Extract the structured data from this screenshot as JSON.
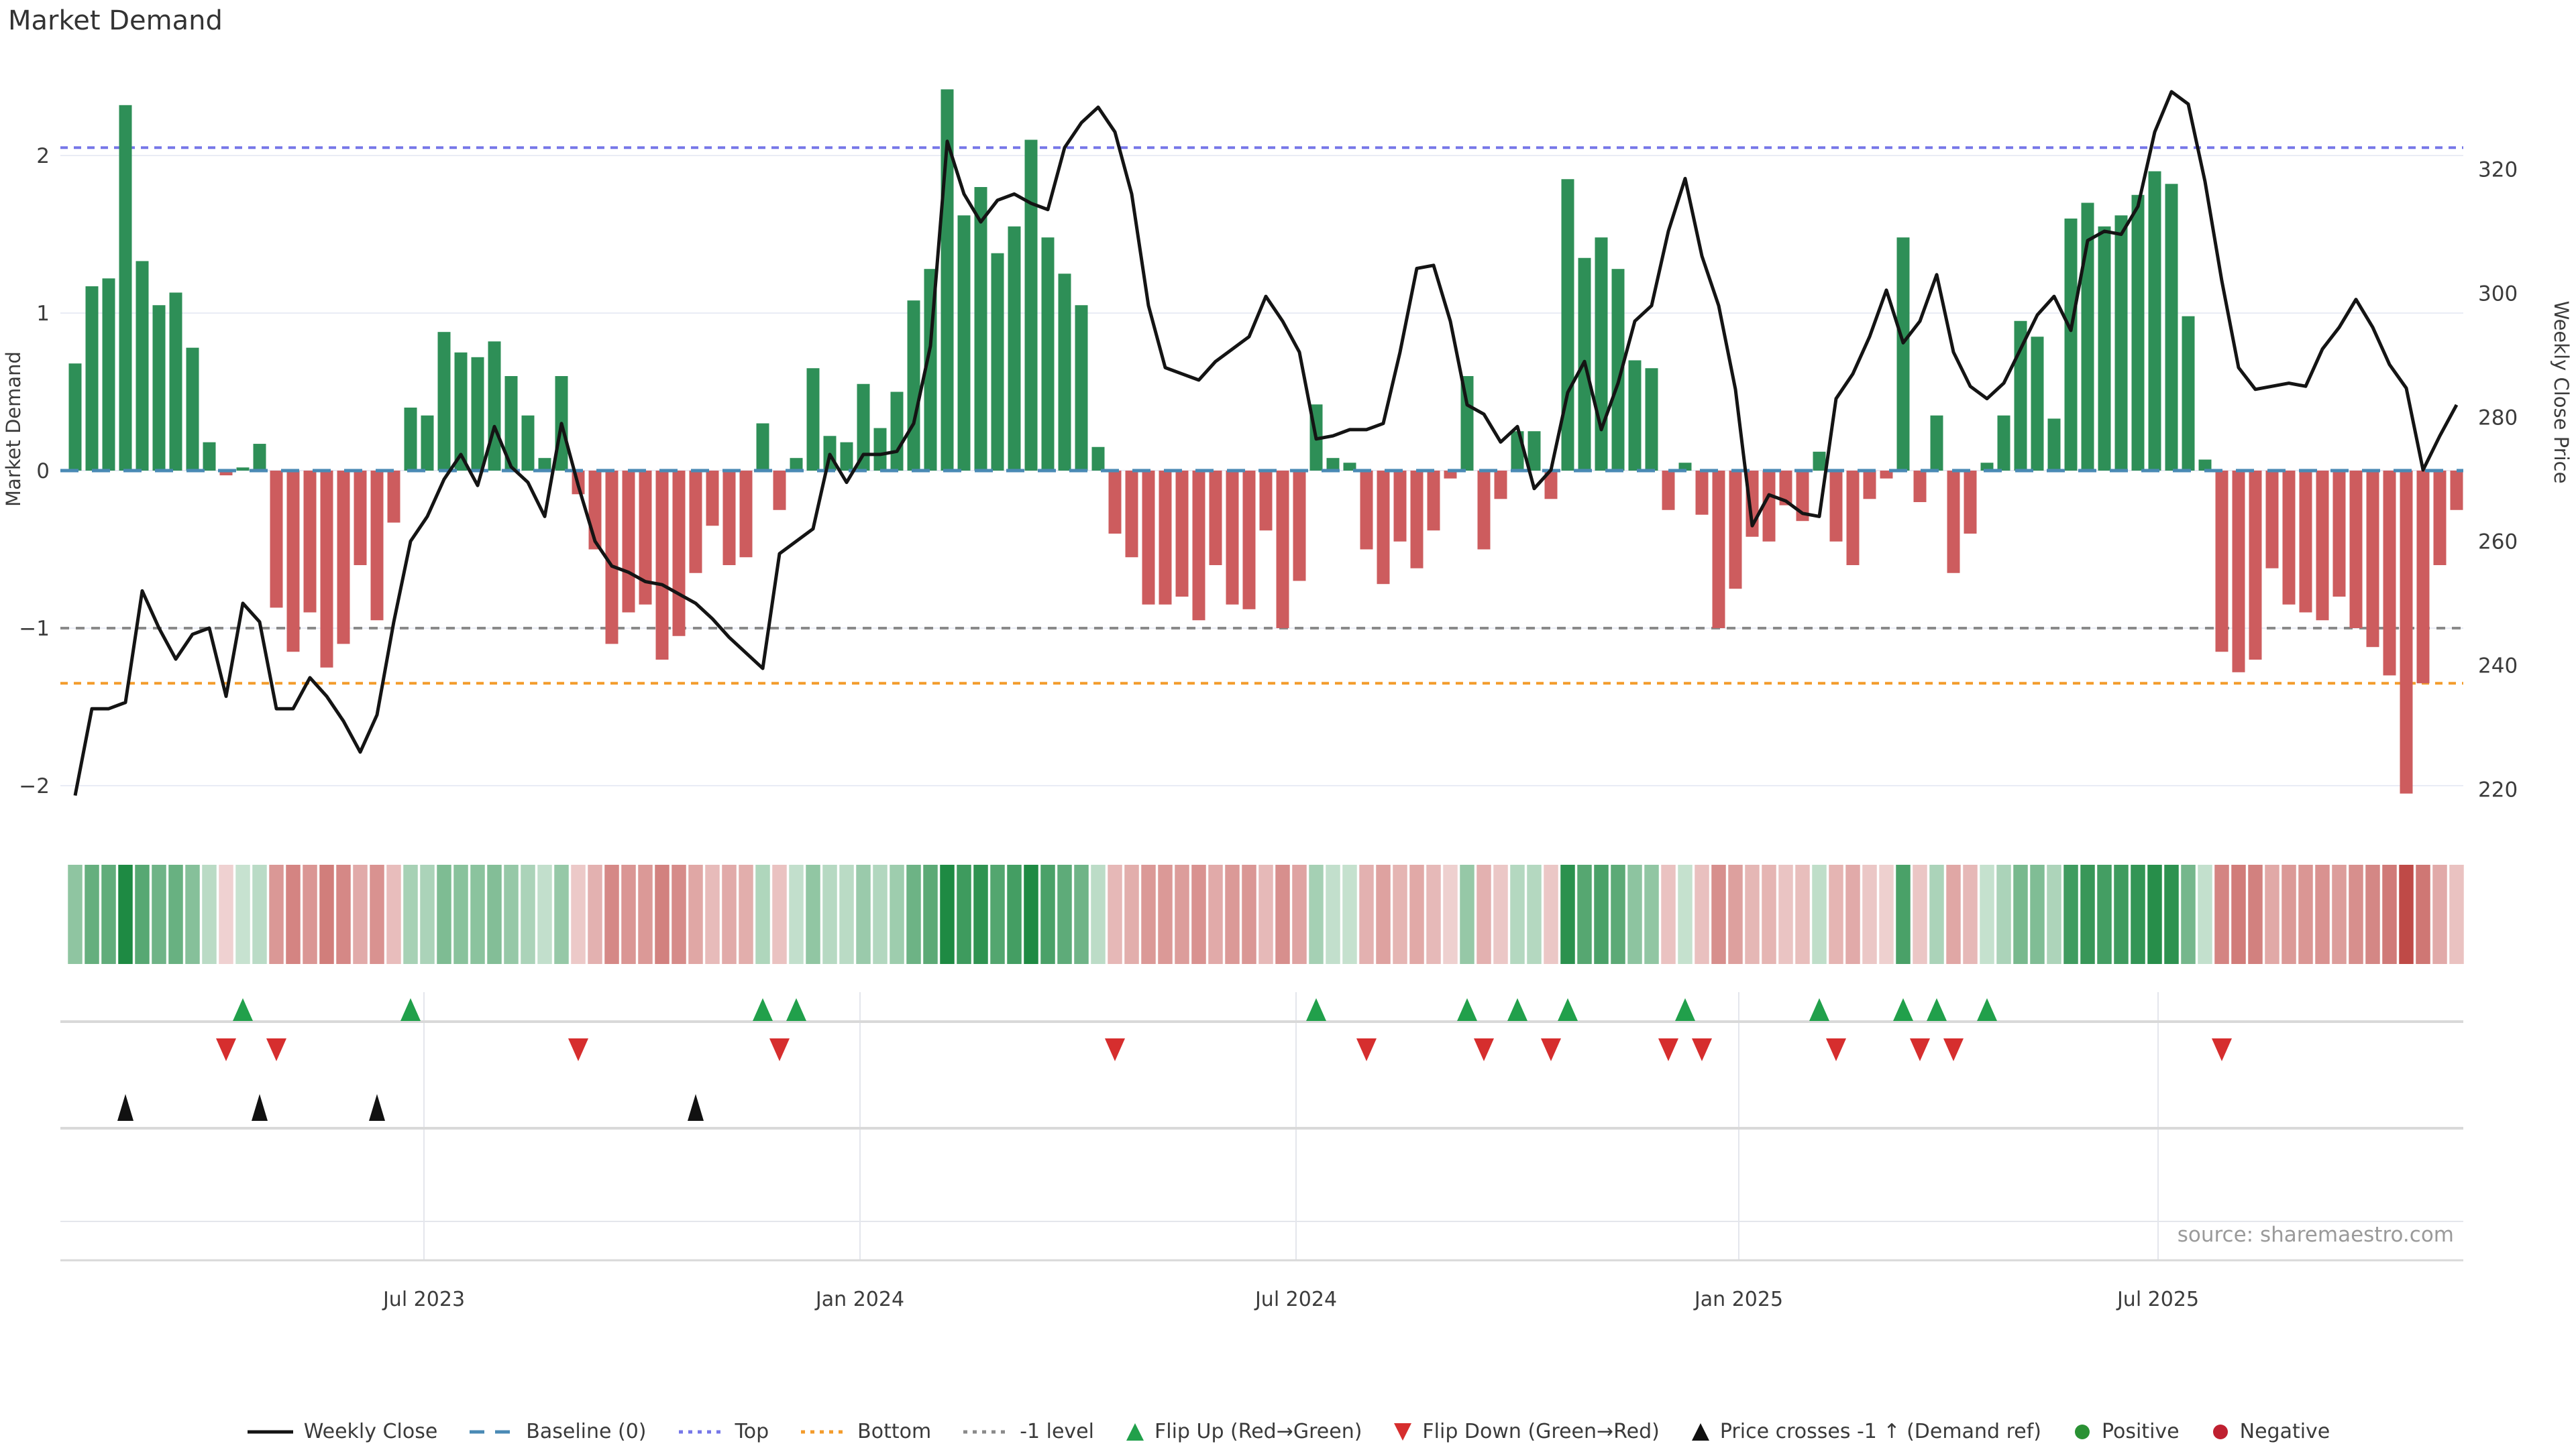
{
  "title": "Market Demand",
  "source_note": "source: sharemaestro.com",
  "axes": {
    "left_label": "Market Demand",
    "right_label": "Weekly Close Price",
    "left_ticks": [
      {
        "label": "2",
        "value": 2
      },
      {
        "label": "1",
        "value": 1
      },
      {
        "label": "0",
        "value": 0
      },
      {
        "label": "−1",
        "value": -1
      },
      {
        "label": "−2",
        "value": -2
      }
    ],
    "right_ticks": [
      {
        "label": "320",
        "value": 320
      },
      {
        "label": "300",
        "value": 300
      },
      {
        "label": "280",
        "value": 280
      },
      {
        "label": "260",
        "value": 260
      },
      {
        "label": "240",
        "value": 240
      },
      {
        "label": "220",
        "value": 220
      }
    ],
    "x_ticks": [
      {
        "label": "Jul 2023",
        "week": 20.8
      },
      {
        "label": "Jan 2024",
        "week": 46.8
      },
      {
        "label": "Jul 2024",
        "week": 72.8
      },
      {
        "label": "Jan 2025",
        "week": 99.2
      },
      {
        "label": "Jul 2025",
        "week": 124.2
      }
    ]
  },
  "colors": {
    "bar_positive": "#2e8f57",
    "bar_negative": "#cd5c5e",
    "price_line": "#141414",
    "top_line": "#7677e8",
    "baseline": "#4a8ab5",
    "bottom_line": "#f39c2c",
    "minus1_line": "#8a8a8a",
    "grid": "#e9ecf5",
    "lane_line": "#d9d9d9",
    "lane_line_light": "#e4e6ec",
    "flip_up": "#21a04b",
    "flip_down": "#d62e2e",
    "price_cross": "#111111",
    "positive_dot": "#2a9134",
    "negative_dot": "#bf2030",
    "heat_green": "#1e8a43",
    "heat_red": "#bf4a47",
    "source_text": "#9a9a9a",
    "tick_text": "#3c3c3c"
  },
  "chart_data": {
    "type": "bar",
    "subtype": "weekly bar + line combo with heatmap strip and signal markers",
    "x_unit": "week",
    "x_range_weeks": 143,
    "demand_ylim": [
      -2.3,
      2.6
    ],
    "price_ylim": [
      215,
      335
    ],
    "ref_lines": {
      "top": {
        "label": "Top",
        "value": 2.05
      },
      "baseline": {
        "label": "Baseline (0)",
        "value": 0
      },
      "minus1": {
        "label": "-1 level",
        "value": -1
      },
      "bottom": {
        "label": "Bottom",
        "value": -1.35
      }
    },
    "series": [
      {
        "name": "Market Demand",
        "type": "bar",
        "axis": "left",
        "values": [
          0.68,
          1.17,
          1.22,
          2.32,
          1.33,
          1.05,
          1.13,
          0.78,
          0.18,
          -0.03,
          0.02,
          0.17,
          -0.87,
          -1.15,
          -0.9,
          -1.25,
          -1.1,
          -0.6,
          -0.95,
          -0.33,
          0.4,
          0.35,
          0.88,
          0.75,
          0.72,
          0.82,
          0.6,
          0.35,
          0.08,
          0.6,
          -0.15,
          -0.5,
          -1.1,
          -0.9,
          -0.85,
          -1.2,
          -1.05,
          -0.65,
          -0.35,
          -0.6,
          -0.55,
          0.3,
          -0.25,
          0.08,
          0.65,
          0.22,
          0.18,
          0.55,
          0.27,
          0.5,
          1.08,
          1.28,
          2.42,
          1.62,
          1.8,
          1.38,
          1.55,
          2.1,
          1.48,
          1.25,
          1.05,
          0.15,
          -0.4,
          -0.55,
          -0.85,
          -0.85,
          -0.8,
          -0.95,
          -0.6,
          -0.85,
          -0.88,
          -0.38,
          -1.0,
          -0.7,
          0.42,
          0.08,
          0.05,
          -0.5,
          -0.72,
          -0.45,
          -0.62,
          -0.38,
          -0.05,
          0.6,
          -0.5,
          -0.18,
          0.25,
          0.25,
          -0.18,
          1.85,
          1.35,
          1.48,
          1.28,
          0.7,
          0.65,
          -0.25,
          0.05,
          -0.28,
          -1.0,
          -0.75,
          -0.42,
          -0.45,
          -0.22,
          -0.32,
          0.12,
          -0.45,
          -0.6,
          -0.18,
          -0.05,
          1.48,
          -0.2,
          0.35,
          -0.65,
          -0.4,
          0.05,
          0.35,
          0.95,
          0.85,
          0.33,
          1.6,
          1.7,
          1.55,
          1.62,
          1.75,
          1.9,
          1.82,
          0.98,
          0.07,
          -1.15,
          -1.28,
          -1.2,
          -0.62,
          -0.85,
          -0.9,
          -0.95,
          -0.8,
          -1.0,
          -1.12,
          -1.3,
          -2.05,
          -1.35,
          -0.6,
          -0.25
        ]
      },
      {
        "name": "Weekly Close",
        "type": "line",
        "axis": "right",
        "values": [
          219,
          233,
          233,
          234,
          252,
          246,
          241,
          245,
          246,
          235,
          250,
          247,
          233,
          233,
          238,
          235,
          231,
          226,
          232,
          247,
          260,
          264,
          270,
          274,
          269,
          278.5,
          272,
          269.5,
          264,
          279,
          269,
          260,
          256,
          255,
          253.5,
          253,
          251.5,
          250,
          247.5,
          244.5,
          242,
          239.5,
          258,
          260,
          262,
          274,
          269.5,
          274,
          274,
          274.5,
          279,
          291.5,
          324.5,
          316,
          311.5,
          315,
          316,
          314.5,
          313.5,
          323.5,
          327.5,
          330,
          326,
          316,
          298,
          288,
          287,
          286,
          289,
          291,
          293,
          299.5,
          295.5,
          290.5,
          276.5,
          277,
          278,
          278,
          279,
          290.5,
          304,
          304.5,
          295.5,
          282,
          280.5,
          276,
          278.5,
          268.5,
          271.5,
          284,
          289,
          278,
          285.5,
          295.5,
          298,
          310,
          318.5,
          306,
          298,
          284.5,
          262.5,
          267.5,
          266.5,
          264.5,
          264,
          283,
          287,
          293,
          300.5,
          292,
          295.5,
          303,
          290.5,
          285,
          283,
          285.5,
          291,
          296.5,
          299.5,
          294,
          308.5,
          310,
          309.5,
          314,
          326,
          332.5,
          330.5,
          318,
          302,
          288,
          284.5,
          285,
          285.5,
          285,
          291,
          294.5,
          299,
          294.5,
          288.5,
          284.7,
          271.5,
          277,
          282
        ]
      }
    ],
    "markers": {
      "flip_up": {
        "label": "Flip Up (Red→Green)",
        "weeks": [
          10,
          20,
          41,
          43,
          74,
          83,
          86,
          89,
          96,
          104,
          109,
          111,
          114
        ]
      },
      "flip_down": {
        "label": "Flip Down (Green→Red)",
        "weeks": [
          9,
          12,
          30,
          42,
          62,
          77,
          84,
          88,
          95,
          97,
          105,
          110,
          112,
          128
        ]
      },
      "price_cross": {
        "label": "Price crosses -1 ↑ (Demand ref)",
        "weeks": [
          3,
          11,
          18,
          37
        ]
      }
    },
    "heatmap": {
      "description": "one cell per week, green intensity for positive demand, red intensity for negative demand",
      "derived_from": "Market Demand values"
    }
  },
  "legend": {
    "items": [
      {
        "label": "Weekly Close",
        "symbol": "solid-line",
        "color": "#141414"
      },
      {
        "label": "Baseline (0)",
        "symbol": "dashes",
        "color": "#4a8ab5"
      },
      {
        "label": "Top",
        "symbol": "dots",
        "color": "#7677e8"
      },
      {
        "label": "Bottom",
        "symbol": "dots",
        "color": "#f39c2c"
      },
      {
        "label": "-1 level",
        "symbol": "dots",
        "color": "#8a8a8a"
      },
      {
        "label": "Flip Up (Red→Green)",
        "symbol": "tri-up",
        "color": "#21a04b"
      },
      {
        "label": "Flip Down (Green→Red)",
        "symbol": "tri-down",
        "color": "#d62e2e"
      },
      {
        "label": "Price crosses -1 ↑ (Demand ref)",
        "symbol": "tri-up",
        "color": "#111111"
      },
      {
        "label": "Positive",
        "symbol": "dot",
        "color": "#2a9134"
      },
      {
        "label": "Negative",
        "symbol": "dot",
        "color": "#bf2030"
      }
    ]
  }
}
